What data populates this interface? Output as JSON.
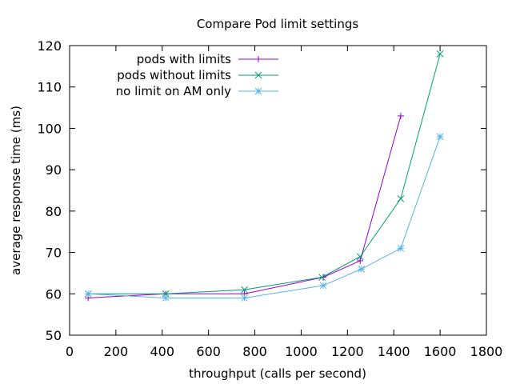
{
  "chart_data": {
    "type": "line",
    "title": "Compare Pod limit settings",
    "xlabel": "throughput (calls per second)",
    "ylabel": "average response time (ms)",
    "xlim": [
      0,
      1800
    ],
    "ylim": [
      50,
      120
    ],
    "xticks": [
      0,
      200,
      400,
      600,
      800,
      1000,
      1200,
      1400,
      1600,
      1800
    ],
    "yticks": [
      50,
      60,
      70,
      80,
      90,
      100,
      110,
      120
    ],
    "grid": false,
    "legend_position": "top-left",
    "series": [
      {
        "name": "pods with limits",
        "color": "#9400d3",
        "marker": "plus",
        "x": [
          80,
          415,
          755,
          1095,
          1255,
          1430
        ],
        "y": [
          59,
          60,
          60,
          64,
          68,
          103
        ]
      },
      {
        "name": "pods without limits",
        "color": "#009e73",
        "marker": "cross",
        "x": [
          80,
          415,
          755,
          1090,
          1255,
          1430,
          1600
        ],
        "y": [
          60,
          60,
          61,
          64,
          69,
          83,
          118
        ]
      },
      {
        "name": "no limit on AM only",
        "color": "#56b4e9",
        "marker": "star",
        "x": [
          80,
          415,
          755,
          1095,
          1260,
          1430,
          1600
        ],
        "y": [
          60,
          59,
          59,
          62,
          66,
          71,
          98
        ]
      }
    ]
  }
}
